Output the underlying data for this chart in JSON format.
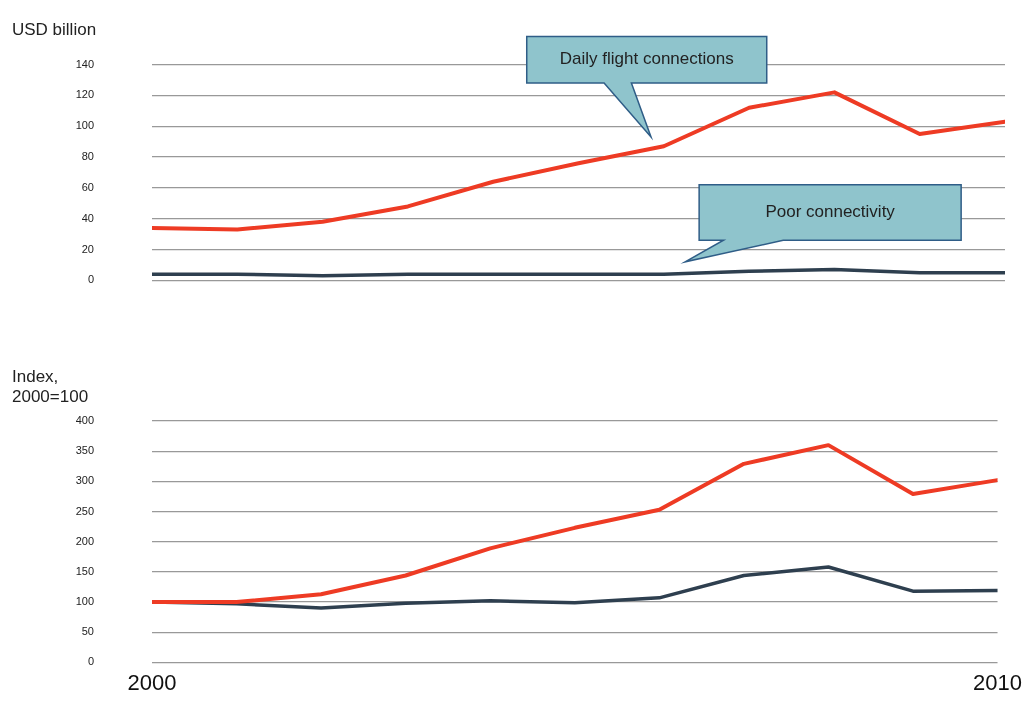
{
  "chart_data": [
    {
      "type": "line",
      "ylabel": "USD billion",
      "x": [
        2000,
        2001,
        2002,
        2003,
        2004,
        2005,
        2006,
        2007,
        2008,
        2009,
        2010
      ],
      "xlim": [
        2000,
        2010
      ],
      "ylim": [
        0,
        140
      ],
      "yticks": [
        0,
        20,
        40,
        60,
        80,
        100,
        120,
        140
      ],
      "grid": "y",
      "tick_labels": "y",
      "series": [
        {
          "name": "Daily flight connections",
          "color": "#ee3b24",
          "values": [
            34,
            33,
            38,
            48,
            64,
            76,
            87,
            112,
            122,
            95,
            103
          ]
        },
        {
          "name": "Poor connectivity",
          "color": "#2e3f4f",
          "values": [
            4,
            4,
            3,
            4,
            4,
            4,
            4,
            6,
            7,
            5,
            5
          ]
        }
      ]
    },
    {
      "type": "line",
      "ylabel": "Index, 2000=100",
      "x": [
        2000,
        2001,
        2002,
        2003,
        2004,
        2005,
        2006,
        2007,
        2008,
        2009,
        2010
      ],
      "xlim": [
        2000,
        2010
      ],
      "xticks": [
        2000,
        2010
      ],
      "ylim": [
        0,
        400
      ],
      "yticks": [
        0,
        50,
        100,
        150,
        200,
        250,
        300,
        350,
        400
      ],
      "grid": "y",
      "series": [
        {
          "color": "#ee3b24",
          "values": [
            100,
            100,
            113,
            144,
            189,
            223,
            253,
            329,
            360,
            279,
            302
          ]
        },
        {
          "color": "#2e3f4f",
          "values": [
            100,
            97,
            90,
            98,
            102,
            99,
            107,
            144,
            158,
            118,
            119
          ]
        }
      ]
    }
  ]
}
